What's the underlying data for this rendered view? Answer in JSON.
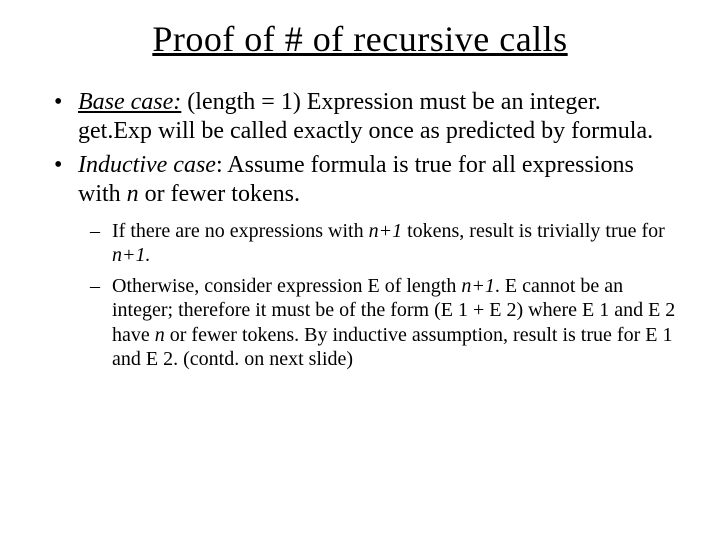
{
  "title": "Proof of # of recursive calls",
  "bullets": {
    "b1": {
      "label": "Base case:",
      "text": " (length = 1) Expression must be an integer. get.Exp will be called exactly once as predicted by formula."
    },
    "b2": {
      "label": "Inductive case",
      "text": ":  Assume formula is true for all expressions with ",
      "n": "n",
      "tail": " or fewer tokens."
    },
    "sub1": {
      "a": "If there are no expressions with ",
      "n1": "n+1",
      "b": " tokens, result is trivially true for ",
      "n2": "n+1.",
      "c": ""
    },
    "sub2": {
      "a": "Otherwise, consider expression E of length ",
      "n1": "n+1",
      "b": ". E cannot be an integer; therefore it must be of the form (E 1 + E 2) where E 1 and E 2 have ",
      "n2": "n",
      "c": " or fewer tokens. By inductive assumption, result is true for E 1 and E 2. (contd. on next slide)"
    }
  },
  "style": {
    "title_fontsize": 36,
    "body_fontsize": 24,
    "sub_fontsize": 20,
    "text_color": "#000000",
    "background_color": "#ffffff",
    "font_family": "Times New Roman"
  }
}
